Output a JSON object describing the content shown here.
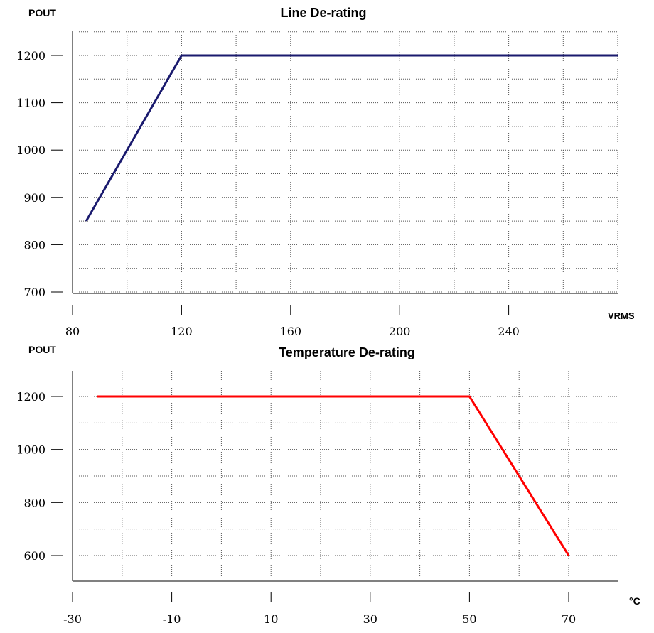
{
  "chart_data": [
    {
      "type": "line",
      "title": "Line De-rating",
      "ylabel": "POUT",
      "xlabel": "VRMS",
      "xlim": [
        80,
        280
      ],
      "ylim": [
        700,
        1250
      ],
      "xticks": [
        80,
        120,
        160,
        200,
        240
      ],
      "yticks": [
        700,
        800,
        900,
        1000,
        1100,
        1200
      ],
      "series": [
        {
          "x": [
            85,
            100,
            120,
            280
          ],
          "y": [
            850,
            1000,
            1200,
            1200
          ]
        }
      ],
      "grid": true,
      "colors": {
        "line": "#1a1a6e"
      }
    },
    {
      "type": "line",
      "title": "Temperature De-rating",
      "ylabel": "POUT",
      "xlabel": "°C",
      "xlim": [
        -30,
        80
      ],
      "ylim": [
        500,
        1300
      ],
      "xticks": [
        -30,
        -10,
        10,
        30,
        50,
        70
      ],
      "yticks": [
        600,
        800,
        1000,
        1200
      ],
      "series": [
        {
          "x": [
            -25,
            50,
            70
          ],
          "y": [
            1200,
            1200,
            600
          ]
        }
      ],
      "grid": true,
      "colors": {
        "line": "#ff0000"
      }
    }
  ]
}
